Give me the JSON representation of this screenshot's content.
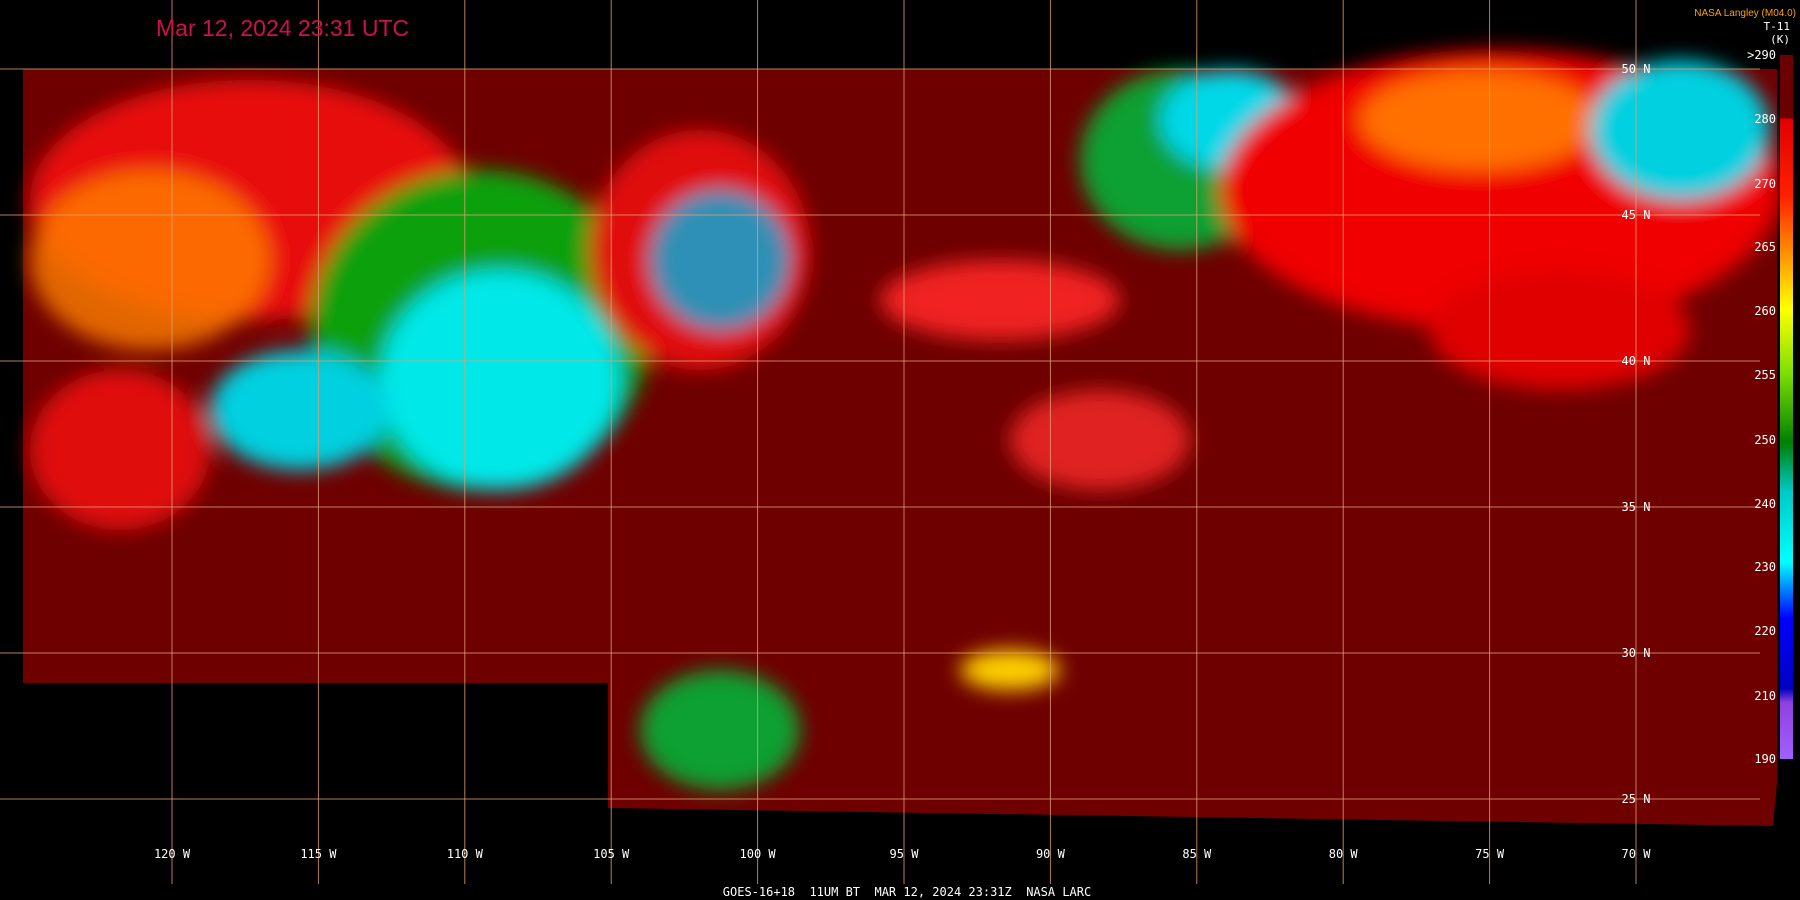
{
  "header": {
    "title": "Mar 12, 2024 23:31 UTC",
    "source": "NASA Langley (M04.0)",
    "product": "T-11",
    "unit": "(K)"
  },
  "colorbar": {
    "labels": [
      ">290",
      "280",
      "270",
      "265",
      "260",
      "255",
      "250",
      "240",
      "230",
      "220",
      "210",
      "190"
    ]
  },
  "latitude_labels": [
    "50 N",
    "45 N",
    "40 N",
    "35 N",
    "30 N",
    "25 N"
  ],
  "longitude_labels": [
    "120 W",
    "115 W",
    "110 W",
    "105 W",
    "100 W",
    "95 W",
    "90 W",
    "85 W",
    "80 W",
    "75 W",
    "70 W"
  ],
  "footer": "GOES-16+18  11UM BT  MAR 12, 2024 23:31Z  NASA LARC"
}
